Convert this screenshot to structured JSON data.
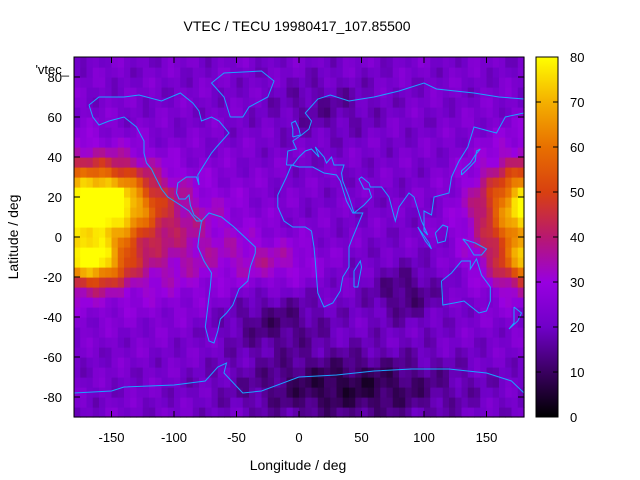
{
  "chart_data": {
    "type": "heatmap",
    "title": "VTEC / TECU 19980417_107.85500",
    "xlabel": "Longitude / deg",
    "ylabel": "Latitude / deg",
    "legend_key": "'vtec_",
    "xlim": [
      -180,
      180
    ],
    "ylim": [
      -90,
      90
    ],
    "x_ticks": [
      -150,
      -100,
      -50,
      0,
      50,
      100,
      150
    ],
    "y_ticks": [
      -80,
      -60,
      -40,
      -20,
      0,
      20,
      40,
      60,
      80
    ],
    "colorbar": {
      "range": [
        0,
        80
      ],
      "ticks": [
        0,
        10,
        20,
        30,
        40,
        50,
        60,
        70,
        80
      ],
      "palette": [
        "#000000",
        "#3a0060",
        "#7000c8",
        "#9800e0",
        "#b81870",
        "#d84010",
        "#e87000",
        "#f4b000",
        "#ffff00"
      ]
    },
    "grid": false,
    "cell_size_deg": [
      5,
      5
    ],
    "coastline_color": "#1aa3ff",
    "background_tec": 22,
    "field_features": [
      {
        "lon": -155,
        "lat": 17,
        "sx": 28,
        "sy": 11,
        "amp": 52
      },
      {
        "lon": -165,
        "lat": -12,
        "sx": 20,
        "sy": 8,
        "amp": 42
      },
      {
        "lon": -105,
        "lat": 0,
        "sx": 45,
        "sy": 22,
        "amp": 14
      },
      {
        "lon": -20,
        "lat": -12,
        "sx": 25,
        "sy": 8,
        "amp": 10
      },
      {
        "lon": 178,
        "lat": 10,
        "sx": 28,
        "sy": 22,
        "amp": 28
      },
      {
        "lon": 40,
        "lat": -75,
        "sx": 60,
        "sy": 12,
        "amp": -15
      },
      {
        "lon": -20,
        "lat": -42,
        "sx": 30,
        "sy": 10,
        "amp": -10
      },
      {
        "lon": 85,
        "lat": -28,
        "sx": 20,
        "sy": 10,
        "amp": -10
      },
      {
        "lon": 20,
        "lat": 65,
        "sx": 30,
        "sy": 10,
        "amp": -6
      },
      {
        "lon": -140,
        "lat": 35,
        "sx": 20,
        "sy": 8,
        "amp": 4
      }
    ],
    "coastlines": [
      {
        "name": "north-america",
        "points": [
          [
            -168,
            66
          ],
          [
            -160,
            70
          ],
          [
            -140,
            70
          ],
          [
            -128,
            71
          ],
          [
            -110,
            68
          ],
          [
            -95,
            72
          ],
          [
            -85,
            67
          ],
          [
            -80,
            63
          ],
          [
            -78,
            58
          ],
          [
            -70,
            60
          ],
          [
            -64,
            58
          ],
          [
            -56,
            52
          ],
          [
            -66,
            45
          ],
          [
            -70,
            42
          ],
          [
            -76,
            36
          ],
          [
            -81,
            31
          ],
          [
            -80,
            26
          ],
          [
            -82,
            30
          ],
          [
            -90,
            30
          ],
          [
            -97,
            27
          ],
          [
            -98,
            22
          ],
          [
            -96,
            19
          ],
          [
            -91,
            19
          ],
          [
            -88,
            21
          ],
          [
            -87,
            16
          ],
          [
            -84,
            11
          ],
          [
            -80,
            9
          ],
          [
            -78,
            8
          ],
          [
            -82,
            8
          ],
          [
            -88,
            13
          ],
          [
            -95,
            16
          ],
          [
            -105,
            20
          ],
          [
            -110,
            24
          ],
          [
            -115,
            30
          ],
          [
            -118,
            34
          ],
          [
            -122,
            37
          ],
          [
            -124,
            42
          ],
          [
            -124,
            48
          ],
          [
            -130,
            55
          ],
          [
            -140,
            60
          ],
          [
            -152,
            58
          ],
          [
            -160,
            56
          ],
          [
            -165,
            60
          ],
          [
            -168,
            66
          ]
        ]
      },
      {
        "name": "south-america",
        "points": [
          [
            -78,
            8
          ],
          [
            -72,
            12
          ],
          [
            -62,
            10
          ],
          [
            -52,
            5
          ],
          [
            -35,
            -5
          ],
          [
            -35,
            -8
          ],
          [
            -39,
            -15
          ],
          [
            -41,
            -22
          ],
          [
            -48,
            -26
          ],
          [
            -53,
            -34
          ],
          [
            -58,
            -38
          ],
          [
            -63,
            -41
          ],
          [
            -65,
            -47
          ],
          [
            -68,
            -53
          ],
          [
            -72,
            -52
          ],
          [
            -75,
            -45
          ],
          [
            -73,
            -35
          ],
          [
            -71,
            -25
          ],
          [
            -70,
            -18
          ],
          [
            -76,
            -12
          ],
          [
            -81,
            -5
          ],
          [
            -80,
            0
          ],
          [
            -78,
            8
          ]
        ]
      },
      {
        "name": "greenland",
        "points": [
          [
            -55,
            60
          ],
          [
            -45,
            60
          ],
          [
            -40,
            65
          ],
          [
            -25,
            70
          ],
          [
            -20,
            78
          ],
          [
            -30,
            83
          ],
          [
            -60,
            82
          ],
          [
            -70,
            77
          ],
          [
            -60,
            70
          ],
          [
            -55,
            60
          ]
        ]
      },
      {
        "name": "africa",
        "points": [
          [
            -17,
            21
          ],
          [
            -17,
            15
          ],
          [
            -12,
            8
          ],
          [
            -5,
            5
          ],
          [
            5,
            5
          ],
          [
            10,
            3
          ],
          [
            12,
            -5
          ],
          [
            13,
            -12
          ],
          [
            15,
            -28
          ],
          [
            20,
            -35
          ],
          [
            27,
            -33
          ],
          [
            33,
            -27
          ],
          [
            35,
            -20
          ],
          [
            40,
            -15
          ],
          [
            40,
            -5
          ],
          [
            43,
            0
          ],
          [
            51,
            12
          ],
          [
            43,
            12
          ],
          [
            38,
            18
          ],
          [
            33,
            28
          ],
          [
            30,
            31
          ],
          [
            20,
            32
          ],
          [
            11,
            35
          ],
          [
            0,
            35
          ],
          [
            -6,
            36
          ],
          [
            -10,
            30
          ],
          [
            -17,
            21
          ]
        ]
      },
      {
        "name": "eurasia",
        "points": [
          [
            -10,
            36
          ],
          [
            -9,
            43
          ],
          [
            -2,
            44
          ],
          [
            -5,
            48
          ],
          [
            2,
            51
          ],
          [
            8,
            54
          ],
          [
            10,
            58
          ],
          [
            5,
            62
          ],
          [
            15,
            69
          ],
          [
            25,
            71
          ],
          [
            40,
            68
          ],
          [
            60,
            70
          ],
          [
            80,
            73
          ],
          [
            100,
            77
          ],
          [
            110,
            74
          ],
          [
            140,
            72
          ],
          [
            160,
            70
          ],
          [
            180,
            69
          ],
          [
            180,
            62
          ],
          [
            165,
            60
          ],
          [
            158,
            52
          ],
          [
            140,
            55
          ],
          [
            135,
            45
          ],
          [
            128,
            38
          ],
          [
            122,
            30
          ],
          [
            120,
            22
          ],
          [
            108,
            20
          ],
          [
            106,
            11
          ],
          [
            100,
            13
          ],
          [
            100,
            3
          ],
          [
            103,
            1
          ],
          [
            98,
            8
          ],
          [
            92,
            20
          ],
          [
            88,
            22
          ],
          [
            80,
            15
          ],
          [
            77,
            8
          ],
          [
            72,
            20
          ],
          [
            66,
            25
          ],
          [
            57,
            25
          ],
          [
            56,
            27
          ],
          [
            50,
            30
          ],
          [
            48,
            29
          ],
          [
            52,
            24
          ],
          [
            56,
            24
          ],
          [
            58,
            20
          ],
          [
            52,
            16
          ],
          [
            44,
            12
          ],
          [
            40,
            20
          ],
          [
            35,
            28
          ],
          [
            34,
            32
          ],
          [
            36,
            36
          ],
          [
            28,
            36
          ],
          [
            26,
            40
          ],
          [
            22,
            37
          ],
          [
            20,
            40
          ],
          [
            13,
            45
          ],
          [
            16,
            40
          ],
          [
            10,
            44
          ],
          [
            5,
            43
          ],
          [
            0,
            40
          ],
          [
            -5,
            36
          ],
          [
            -10,
            36
          ]
        ]
      },
      {
        "name": "uk",
        "points": [
          [
            -5,
            50
          ],
          [
            1,
            51
          ],
          [
            0,
            54
          ],
          [
            -3,
            58
          ],
          [
            -6,
            57
          ],
          [
            -5,
            54
          ],
          [
            -5,
            50
          ]
        ]
      },
      {
        "name": "japan",
        "points": [
          [
            130,
            31
          ],
          [
            135,
            34
          ],
          [
            141,
            38
          ],
          [
            142,
            43
          ],
          [
            145,
            44
          ],
          [
            141,
            41
          ],
          [
            137,
            37
          ],
          [
            130,
            33
          ],
          [
            130,
            31
          ]
        ]
      },
      {
        "name": "madagascar",
        "points": [
          [
            44,
            -25
          ],
          [
            47,
            -25
          ],
          [
            50,
            -15
          ],
          [
            49,
            -12
          ],
          [
            44,
            -17
          ],
          [
            44,
            -25
          ]
        ]
      },
      {
        "name": "australia",
        "points": [
          [
            114,
            -22
          ],
          [
            122,
            -18
          ],
          [
            130,
            -12
          ],
          [
            137,
            -12
          ],
          [
            137,
            -16
          ],
          [
            142,
            -11
          ],
          [
            146,
            -19
          ],
          [
            153,
            -25
          ],
          [
            153,
            -32
          ],
          [
            150,
            -37
          ],
          [
            144,
            -38
          ],
          [
            138,
            -35
          ],
          [
            132,
            -32
          ],
          [
            124,
            -33
          ],
          [
            115,
            -34
          ],
          [
            114,
            -22
          ]
        ]
      },
      {
        "name": "new-guinea",
        "points": [
          [
            131,
            -1
          ],
          [
            141,
            -3
          ],
          [
            150,
            -6
          ],
          [
            146,
            -9
          ],
          [
            140,
            -9
          ],
          [
            135,
            -4
          ],
          [
            131,
            -1
          ]
        ]
      },
      {
        "name": "new-zealand",
        "points": [
          [
            172,
            -35
          ],
          [
            178,
            -38
          ],
          [
            175,
            -42
          ],
          [
            168,
            -46
          ],
          [
            172,
            -43
          ],
          [
            172,
            -35
          ]
        ]
      },
      {
        "name": "borneo",
        "points": [
          [
            109,
            2
          ],
          [
            115,
            6
          ],
          [
            119,
            5
          ],
          [
            117,
            -2
          ],
          [
            111,
            -3
          ],
          [
            109,
            2
          ]
        ]
      },
      {
        "name": "sumatra",
        "points": [
          [
            95,
            5
          ],
          [
            104,
            -3
          ],
          [
            106,
            -6
          ],
          [
            101,
            -2
          ],
          [
            95,
            5
          ]
        ]
      },
      {
        "name": "antarctica",
        "points": [
          [
            -180,
            -78
          ],
          [
            -150,
            -77
          ],
          [
            -140,
            -75
          ],
          [
            -100,
            -74
          ],
          [
            -75,
            -72
          ],
          [
            -65,
            -65
          ],
          [
            -58,
            -63
          ],
          [
            -60,
            -68
          ],
          [
            -45,
            -78
          ],
          [
            -30,
            -77
          ],
          [
            0,
            -70
          ],
          [
            30,
            -69
          ],
          [
            60,
            -67
          ],
          [
            90,
            -66
          ],
          [
            120,
            -66
          ],
          [
            150,
            -68
          ],
          [
            170,
            -72
          ],
          [
            180,
            -78
          ]
        ]
      }
    ]
  }
}
